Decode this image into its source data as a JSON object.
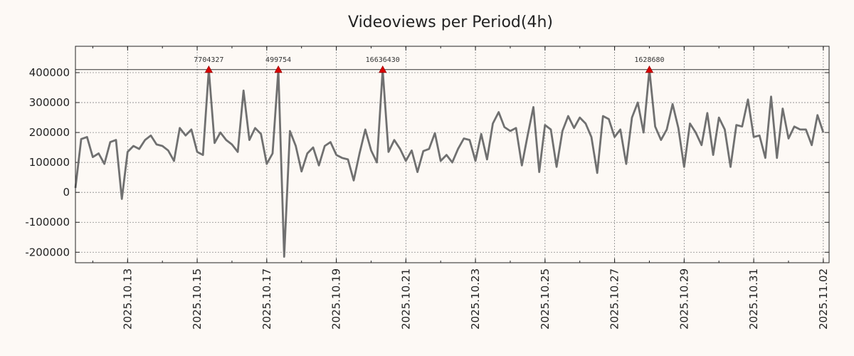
{
  "chart_data": {
    "type": "line",
    "title": "Videoviews per Period(4h)",
    "xlabel": "",
    "ylabel": "",
    "ylim": [
      -235000,
      488000
    ],
    "yticks": [
      -200000,
      -100000,
      0,
      100000,
      200000,
      300000,
      400000
    ],
    "ytick_labels": [
      "-200000",
      "-100000",
      "0",
      "100000",
      "200000",
      "300000",
      "400000"
    ],
    "x_start": "2025-10-11T12:00",
    "x_end": "2025-11-02T04:00",
    "xticks": [
      {
        "date": "2025-10-13",
        "label": "2025.10.13"
      },
      {
        "date": "2025-10-15",
        "label": "2025.10.15"
      },
      {
        "date": "2025-10-17",
        "label": "2025.10.17"
      },
      {
        "date": "2025-10-19",
        "label": "2025.10.19"
      },
      {
        "date": "2025-10-21",
        "label": "2025.10.21"
      },
      {
        "date": "2025-10-23",
        "label": "2025.10.23"
      },
      {
        "date": "2025-10-25",
        "label": "2025.10.25"
      },
      {
        "date": "2025-10-27",
        "label": "2025.10.27"
      },
      {
        "date": "2025-10-29",
        "label": "2025.10.29"
      },
      {
        "date": "2025-10-31",
        "label": "2025.10.31"
      },
      {
        "date": "2025-11-02",
        "label": "2025.11.02"
      }
    ],
    "cap_line": 410000,
    "grid": true,
    "line_color": "#707070",
    "marker_color": "#dd0000",
    "series": [
      {
        "name": "Videoviews",
        "points": [
          [
            "2025-10-11T12:00",
            15000
          ],
          [
            "2025-10-11T16:00",
            178000
          ],
          [
            "2025-10-11T20:00",
            185000
          ],
          [
            "2025-10-12T00:00",
            118000
          ],
          [
            "2025-10-12T04:00",
            130000
          ],
          [
            "2025-10-12T08:00",
            95000
          ],
          [
            "2025-10-12T12:00",
            168000
          ],
          [
            "2025-10-12T16:00",
            175000
          ],
          [
            "2025-10-12T20:00",
            -22000
          ],
          [
            "2025-10-13T00:00",
            135000
          ],
          [
            "2025-10-13T04:00",
            155000
          ],
          [
            "2025-10-13T08:00",
            145000
          ],
          [
            "2025-10-13T12:00",
            175000
          ],
          [
            "2025-10-13T16:00",
            190000
          ],
          [
            "2025-10-13T20:00",
            160000
          ],
          [
            "2025-10-14T00:00",
            155000
          ],
          [
            "2025-10-14T04:00",
            140000
          ],
          [
            "2025-10-14T08:00",
            105000
          ],
          [
            "2025-10-14T12:00",
            215000
          ],
          [
            "2025-10-14T16:00",
            190000
          ],
          [
            "2025-10-14T20:00",
            210000
          ],
          [
            "2025-10-15T00:00",
            135000
          ],
          [
            "2025-10-15T04:00",
            125000
          ],
          [
            "2025-10-15T08:00",
            410000
          ],
          [
            "2025-10-15T12:00",
            165000
          ],
          [
            "2025-10-15T16:00",
            200000
          ],
          [
            "2025-10-15T20:00",
            175000
          ],
          [
            "2025-10-16T00:00",
            160000
          ],
          [
            "2025-10-16T04:00",
            135000
          ],
          [
            "2025-10-16T08:00",
            340000
          ],
          [
            "2025-10-16T12:00",
            175000
          ],
          [
            "2025-10-16T16:00",
            215000
          ],
          [
            "2025-10-16T20:00",
            195000
          ],
          [
            "2025-10-17T00:00",
            95000
          ],
          [
            "2025-10-17T04:00",
            130000
          ],
          [
            "2025-10-17T08:00",
            410000
          ],
          [
            "2025-10-17T12:00",
            -215000
          ],
          [
            "2025-10-17T16:00",
            205000
          ],
          [
            "2025-10-17T20:00",
            155000
          ],
          [
            "2025-10-18T00:00",
            70000
          ],
          [
            "2025-10-18T04:00",
            130000
          ],
          [
            "2025-10-18T08:00",
            150000
          ],
          [
            "2025-10-18T12:00",
            90000
          ],
          [
            "2025-10-18T16:00",
            155000
          ],
          [
            "2025-10-18T20:00",
            168000
          ],
          [
            "2025-10-19T00:00",
            125000
          ],
          [
            "2025-10-19T04:00",
            115000
          ],
          [
            "2025-10-19T08:00",
            110000
          ],
          [
            "2025-10-19T12:00",
            40000
          ],
          [
            "2025-10-19T16:00",
            130000
          ],
          [
            "2025-10-19T20:00",
            210000
          ],
          [
            "2025-10-20T00:00",
            140000
          ],
          [
            "2025-10-20T04:00",
            100000
          ],
          [
            "2025-10-20T08:00",
            410000
          ],
          [
            "2025-10-20T12:00",
            135000
          ],
          [
            "2025-10-20T16:00",
            175000
          ],
          [
            "2025-10-20T20:00",
            145000
          ],
          [
            "2025-10-21T00:00",
            105000
          ],
          [
            "2025-10-21T04:00",
            140000
          ],
          [
            "2025-10-21T08:00",
            68000
          ],
          [
            "2025-10-21T12:00",
            138000
          ],
          [
            "2025-10-21T16:00",
            145000
          ],
          [
            "2025-10-21T20:00",
            198000
          ],
          [
            "2025-10-22T00:00",
            105000
          ],
          [
            "2025-10-22T04:00",
            125000
          ],
          [
            "2025-10-22T08:00",
            100000
          ],
          [
            "2025-10-22T12:00",
            145000
          ],
          [
            "2025-10-22T16:00",
            180000
          ],
          [
            "2025-10-22T20:00",
            175000
          ],
          [
            "2025-10-23T00:00",
            105000
          ],
          [
            "2025-10-23T04:00",
            195000
          ],
          [
            "2025-10-23T08:00",
            110000
          ],
          [
            "2025-10-23T12:00",
            230000
          ],
          [
            "2025-10-23T16:00",
            268000
          ],
          [
            "2025-10-23T20:00",
            218000
          ],
          [
            "2025-10-24T00:00",
            205000
          ],
          [
            "2025-10-24T04:00",
            215000
          ],
          [
            "2025-10-24T08:00",
            90000
          ],
          [
            "2025-10-24T12:00",
            190000
          ],
          [
            "2025-10-24T16:00",
            285000
          ],
          [
            "2025-10-24T20:00",
            68000
          ],
          [
            "2025-10-25T00:00",
            225000
          ],
          [
            "2025-10-25T04:00",
            210000
          ],
          [
            "2025-10-25T08:00",
            85000
          ],
          [
            "2025-10-25T12:00",
            205000
          ],
          [
            "2025-10-25T16:00",
            255000
          ],
          [
            "2025-10-25T20:00",
            215000
          ],
          [
            "2025-10-26T00:00",
            250000
          ],
          [
            "2025-10-26T04:00",
            230000
          ],
          [
            "2025-10-26T08:00",
            185000
          ],
          [
            "2025-10-26T12:00",
            65000
          ],
          [
            "2025-10-26T16:00",
            255000
          ],
          [
            "2025-10-26T20:00",
            245000
          ],
          [
            "2025-10-27T00:00",
            185000
          ],
          [
            "2025-10-27T04:00",
            210000
          ],
          [
            "2025-10-27T08:00",
            95000
          ],
          [
            "2025-10-27T12:00",
            250000
          ],
          [
            "2025-10-27T16:00",
            300000
          ],
          [
            "2025-10-27T20:00",
            200000
          ],
          [
            "2025-10-28T00:00",
            410000
          ],
          [
            "2025-10-28T04:00",
            220000
          ],
          [
            "2025-10-28T08:00",
            175000
          ],
          [
            "2025-10-28T12:00",
            210000
          ],
          [
            "2025-10-28T16:00",
            295000
          ],
          [
            "2025-10-28T20:00",
            215000
          ],
          [
            "2025-10-29T00:00",
            85000
          ],
          [
            "2025-10-29T04:00",
            230000
          ],
          [
            "2025-10-29T08:00",
            200000
          ],
          [
            "2025-10-29T12:00",
            158000
          ],
          [
            "2025-10-29T16:00",
            265000
          ],
          [
            "2025-10-29T20:00",
            125000
          ],
          [
            "2025-10-30T00:00",
            250000
          ],
          [
            "2025-10-30T04:00",
            210000
          ],
          [
            "2025-10-30T08:00",
            85000
          ],
          [
            "2025-10-30T12:00",
            225000
          ],
          [
            "2025-10-30T16:00",
            220000
          ],
          [
            "2025-10-30T20:00",
            310000
          ],
          [
            "2025-10-31T00:00",
            185000
          ],
          [
            "2025-10-31T04:00",
            190000
          ],
          [
            "2025-10-31T08:00",
            115000
          ],
          [
            "2025-10-31T12:00",
            320000
          ],
          [
            "2025-10-31T16:00",
            115000
          ],
          [
            "2025-10-31T20:00",
            280000
          ],
          [
            "2025-11-01T00:00",
            180000
          ],
          [
            "2025-11-01T04:00",
            220000
          ],
          [
            "2025-11-01T08:00",
            210000
          ],
          [
            "2025-11-01T12:00",
            210000
          ],
          [
            "2025-11-01T16:00",
            158000
          ],
          [
            "2025-11-01T20:00",
            258000
          ],
          [
            "2025-11-02T00:00",
            200000
          ]
        ]
      }
    ],
    "peaks": [
      {
        "date": "2025-10-15T08:00",
        "value": 410000,
        "label": "7704327"
      },
      {
        "date": "2025-10-17T08:00",
        "value": 410000,
        "label": "499754"
      },
      {
        "date": "2025-10-20T08:00",
        "value": 410000,
        "label": "16636430"
      },
      {
        "date": "2025-10-28T00:00",
        "value": 410000,
        "label": "1628680"
      }
    ]
  }
}
